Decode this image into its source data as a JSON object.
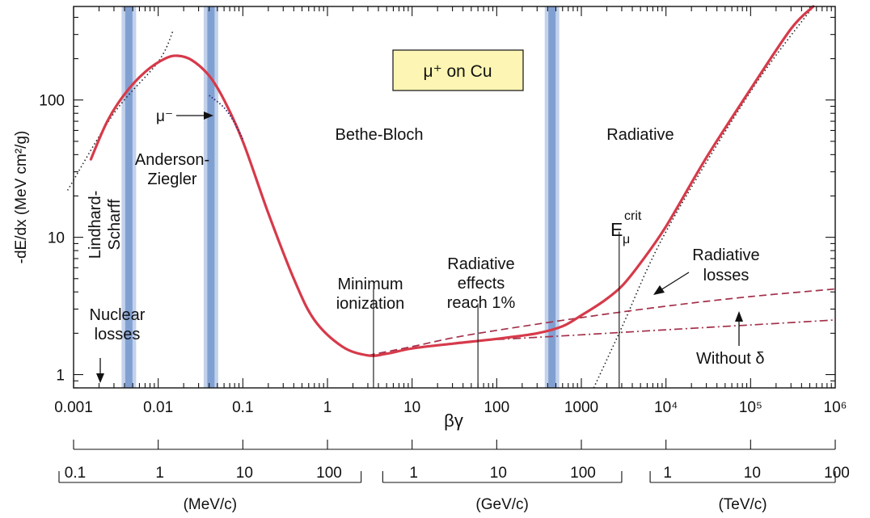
{
  "chart_data": {
    "type": "line",
    "title": "μ⁺ on Cu",
    "xlabel": "βγ",
    "ylabel": "-dE/dx (MeV cm²/g)",
    "xscale": "log",
    "yscale": "log",
    "xlim": [
      0.001,
      1000000
    ],
    "ylim": [
      0.8,
      480
    ],
    "x_tick_labels": [
      "0.001",
      "0.01",
      "0.1",
      "1",
      "10",
      "100",
      "1000",
      "10⁴",
      "10⁵",
      "10⁶"
    ],
    "y_tick_labels": [
      "1",
      "10",
      "100"
    ],
    "series": [
      {
        "name": "",
        "style": "solid",
        "color": "#d63a4a",
        "points": [
          [
            0.0016,
            37
          ],
          [
            0.0025,
            70
          ],
          [
            0.004,
            110
          ],
          [
            0.007,
            160
          ],
          [
            0.012,
            200
          ],
          [
            0.017,
            210
          ],
          [
            0.025,
            195
          ],
          [
            0.04,
            150
          ],
          [
            0.06,
            100
          ],
          [
            0.1,
            50
          ],
          [
            0.2,
            15
          ],
          [
            0.4,
            5
          ],
          [
            0.7,
            2.5
          ],
          [
            1.5,
            1.6
          ],
          [
            3,
            1.38
          ],
          [
            5,
            1.42
          ],
          [
            10,
            1.55
          ],
          [
            30,
            1.68
          ],
          [
            100,
            1.82
          ],
          [
            300,
            2.0
          ],
          [
            600,
            2.25
          ],
          [
            1000,
            2.7
          ],
          [
            1800,
            3.4
          ],
          [
            3000,
            4.4
          ],
          [
            5000,
            6.5
          ],
          [
            10000,
            12
          ],
          [
            30000,
            38
          ],
          [
            100000,
            120
          ],
          [
            300000,
            330
          ],
          [
            550000,
            480
          ]
        ]
      },
      {
        "name": "",
        "style": "dashed",
        "color": "#a3304a",
        "points": [
          [
            3,
            1.38
          ],
          [
            10,
            1.6
          ],
          [
            30,
            1.85
          ],
          [
            100,
            2.1
          ],
          [
            1000,
            2.6
          ],
          [
            10000,
            3.15
          ],
          [
            100000,
            3.7
          ],
          [
            1000000,
            4.2
          ]
        ]
      },
      {
        "name": "Without δ",
        "style": "dash-dot",
        "color": "#a3304a",
        "points": [
          [
            100,
            1.8
          ],
          [
            1000,
            1.95
          ],
          [
            10000,
            2.12
          ],
          [
            100000,
            2.3
          ],
          [
            1000000,
            2.5
          ]
        ]
      },
      {
        "name": "",
        "style": "dotted",
        "color": "#222222",
        "points": [
          [
            0.00085,
            22
          ],
          [
            0.003,
            80
          ],
          [
            0.01,
            190
          ],
          [
            0.015,
            320
          ]
        ]
      },
      {
        "name": "μ⁻",
        "style": "dotted",
        "color": "#2c2f7a",
        "points": [
          [
            0.04,
            108
          ],
          [
            0.06,
            88
          ],
          [
            0.08,
            68
          ],
          [
            0.1,
            52
          ]
        ]
      },
      {
        "name": "",
        "style": "dotted",
        "color": "#222222",
        "points": [
          [
            1400,
            0.8
          ],
          [
            3000,
            2.2
          ],
          [
            10000,
            11
          ],
          [
            100000,
            115
          ],
          [
            550000,
            480
          ]
        ]
      }
    ],
    "bands_x": [
      0.0045,
      0.042,
      450
    ],
    "markers": [
      {
        "x": 3.5,
        "y_top": 4.2,
        "label": "Minimum\nionization"
      },
      {
        "x": 60,
        "y_top": 3.3,
        "label": "Radiative\neffects\nreach 1%"
      },
      {
        "x": 2800,
        "y_top": 11,
        "label": "E_crit"
      }
    ],
    "region_labels": [
      "Bethe-Bloch",
      "Radiative",
      "Anderson-\nZiegler",
      "Lindhard-\nScharff",
      "Nuclear\nlosses"
    ],
    "annotations": [
      "μ⁻",
      "Radiative\nlosses",
      "Without δ",
      "E",
      "μ",
      "crit"
    ],
    "momentum_scales": [
      {
        "unit": "(MeV/c)",
        "ticks": [
          {
            "x": 0.001,
            "label": "0.1"
          },
          {
            "x": 0.01,
            "label": "1"
          },
          {
            "x": 0.1,
            "label": "10"
          },
          {
            "x": 1,
            "label": "100"
          }
        ]
      },
      {
        "unit": "(GeV/c)",
        "ticks": [
          {
            "x": 10,
            "label": "1"
          },
          {
            "x": 100,
            "label": "10"
          },
          {
            "x": 1000,
            "label": "100"
          }
        ]
      },
      {
        "unit": "(TeV/c)",
        "ticks": [
          {
            "x": 10000,
            "label": "1"
          },
          {
            "x": 100000,
            "label": "10"
          },
          {
            "x": 1000000,
            "label": "100"
          }
        ]
      }
    ]
  }
}
